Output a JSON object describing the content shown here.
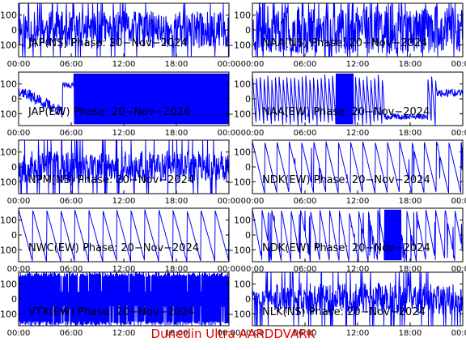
{
  "footer": "Dunedin Ultra AARDDVARK",
  "colors": {
    "trace": "#0000ff",
    "axis": "#000000",
    "footer": "#e00000",
    "background": "#ffffff"
  },
  "chart_data": [
    {
      "type": "line",
      "title": "JAP(NS) Phase: 20-Nov-2024",
      "xticks": [
        "00:00",
        "06:00",
        "12:00",
        "18:00",
        "00:00"
      ],
      "xlim": [
        0,
        24
      ],
      "yticks": [
        "100",
        "0",
        "-100"
      ],
      "ylim": [
        -180,
        180
      ],
      "grid": true,
      "pattern": "noise",
      "density": 0.7,
      "seed": 11
    },
    {
      "type": "line",
      "title": "NAA(NS) Phase: 20-Nov-2024",
      "xticks": [
        "00:00",
        "06:00",
        "12:00",
        "18:00",
        "00:00"
      ],
      "xlim": [
        0,
        24
      ],
      "yticks": [
        "100",
        "0",
        "-100"
      ],
      "ylim": [
        -180,
        180
      ],
      "grid": true,
      "pattern": "noise",
      "density": 0.9,
      "seed": 23
    },
    {
      "type": "line",
      "title": "JAP(EW) Phase: 20-Nov-2024",
      "xticks": [
        "00:00",
        "06:00",
        "12:00",
        "18:00",
        "00:00"
      ],
      "xlim": [
        0,
        24
      ],
      "yticks": [
        "100",
        "0",
        "-100"
      ],
      "ylim": [
        -180,
        180
      ],
      "grid": true,
      "pattern": "jap_ew",
      "density": 0.9,
      "seed": 37
    },
    {
      "type": "line",
      "title": "NAA(EW) Phase: 20-Nov-2024",
      "xticks": [
        "00:00",
        "06:00",
        "12:00",
        "18:00",
        "00:00"
      ],
      "xlim": [
        0,
        24
      ],
      "yticks": [
        "100",
        "0",
        "-100"
      ],
      "ylim": [
        -180,
        180
      ],
      "grid": true,
      "pattern": "naa_ew",
      "density": 0.6,
      "seed": 41
    },
    {
      "type": "line",
      "title": "NPM(NS) Phase: 20-Nov-2024",
      "xticks": [
        "00:00",
        "06:00",
        "12:00",
        "18:00",
        "00:00"
      ],
      "xlim": [
        0,
        24
      ],
      "yticks": [
        "100",
        "0",
        "-100"
      ],
      "ylim": [
        -180,
        180
      ],
      "grid": true,
      "pattern": "noise",
      "density": 0.6,
      "seed": 53
    },
    {
      "type": "line",
      "title": "NDK(EW) Phase: 20-Nov-2024",
      "xticks": [
        "00:00",
        "06:00",
        "12:00",
        "18:00",
        "00:00"
      ],
      "xlim": [
        0,
        24
      ],
      "yticks": [
        "100",
        "0",
        "-100"
      ],
      "ylim": [
        -180,
        180
      ],
      "grid": true,
      "pattern": "ramp",
      "density": 0.5,
      "seed": 61
    },
    {
      "type": "line",
      "title": "NWC(EW) Phase: 20-Nov-2024",
      "xticks": [
        "00:00",
        "06:00",
        "12:00",
        "18:00",
        "00:00"
      ],
      "xlim": [
        0,
        24
      ],
      "yticks": [
        "100",
        "0",
        "-100"
      ],
      "ylim": [
        -180,
        180
      ],
      "grid": true,
      "pattern": "nwc",
      "density": 0.2,
      "seed": 71
    },
    {
      "type": "line",
      "title": "NDK(EW) Phase: 20-Nov-2024",
      "xticks": [
        "00:00",
        "06:00",
        "12:00",
        "18:00",
        "00:00"
      ],
      "xlim": [
        0,
        24
      ],
      "yticks": [
        "100",
        "0",
        "-100"
      ],
      "ylim": [
        -180,
        180
      ],
      "grid": true,
      "pattern": "ramp_dense",
      "density": 0.6,
      "seed": 83
    },
    {
      "type": "line",
      "title": "VTX(EW) Phase: 20-Nov-2024",
      "xticks": [
        "00:00",
        "06:00",
        "12:00",
        "18:00",
        "00:00"
      ],
      "xlim": [
        0,
        24
      ],
      "yticks": [
        "100",
        "0",
        "-100"
      ],
      "ylim": [
        -180,
        180
      ],
      "grid": true,
      "pattern": "solid",
      "density": 1.0,
      "seed": 97
    },
    {
      "type": "line",
      "title": "NLK(NS) Phase: 20-Nov-2024",
      "xticks": [
        "00:00",
        "06:00",
        "12:00",
        "18:00",
        "00:00"
      ],
      "xlim": [
        0,
        24
      ],
      "yticks": [
        "100",
        "0",
        "-100"
      ],
      "ylim": [
        -180,
        180
      ],
      "grid": true,
      "pattern": "noise_late",
      "density": 0.6,
      "seed": 101
    }
  ]
}
